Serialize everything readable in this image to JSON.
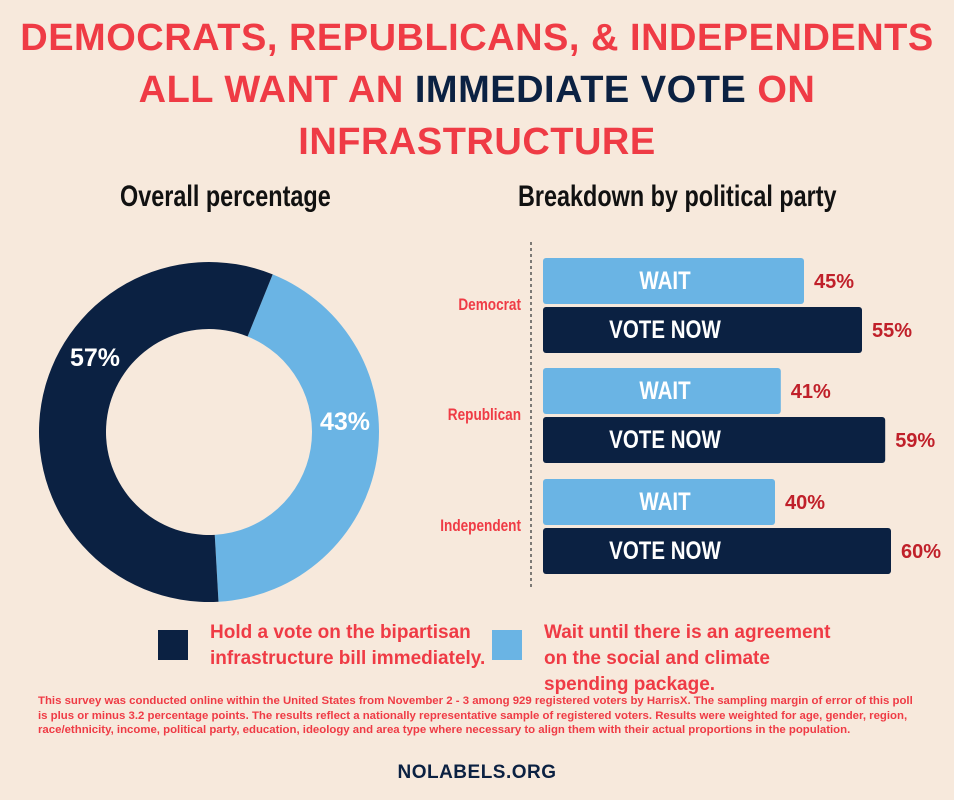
{
  "title": {
    "line1": "DEMOCRATS, REPUBLICANS, & INDEPENDENTS",
    "line2_pre": "ALL WANT AN ",
    "line2_highlight": "IMMEDIATE VOTE",
    "line2_post": " ON",
    "line3": "INFRASTRUCTURE"
  },
  "colors": {
    "red": "#ef3b45",
    "navy": "#0b2142",
    "light_blue": "#6ab4e4",
    "background": "#f7e9dc"
  },
  "chart_data": [
    {
      "type": "pie",
      "title": "Overall percentage",
      "slices": [
        {
          "label": "57%",
          "value": 57,
          "series": "vote_now"
        },
        {
          "label": "43%",
          "value": 43,
          "series": "wait"
        }
      ]
    },
    {
      "type": "bar",
      "title": "Breakdown by political party",
      "categories": [
        "Democrat",
        "Republican",
        "Independent"
      ],
      "series": [
        {
          "name": "WAIT",
          "key": "wait",
          "values": [
            45,
            41,
            40
          ]
        },
        {
          "name": "VOTE NOW",
          "key": "vote_now",
          "values": [
            55,
            59,
            60
          ]
        }
      ],
      "value_suffix": "%"
    }
  ],
  "legend": {
    "vote_now": "Hold a vote on the bipartisan infrastructure bill immediately.",
    "wait": "Wait until there is an agreement on the social and climate spending package."
  },
  "note": "This survey was conducted online within the United States from November 2 - 3 among 929 registered voters by HarrisX. The sampling margin of error of this poll is plus or minus 3.2 percentage points. The results reflect a nationally representative sample of registered voters. Results were weighted for age, gender, region, race/ethnicity, income, political party, education, ideology and area type where necessary to align them with their actual proportions in the population.",
  "footer": "NOLABELS.ORG"
}
